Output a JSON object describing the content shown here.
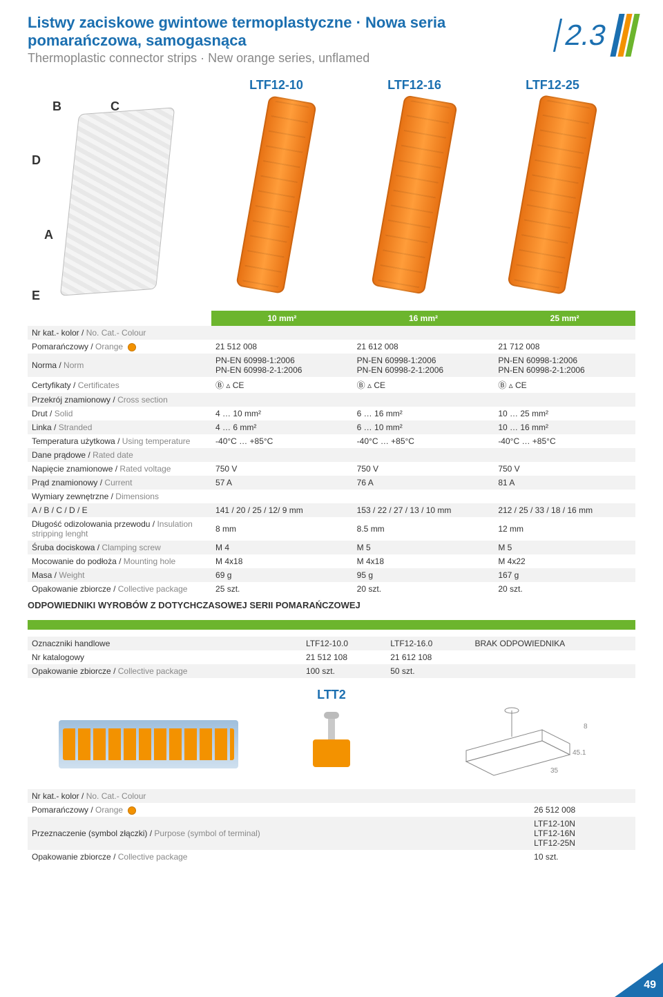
{
  "section_number": "2.3",
  "page_number": "49",
  "colors": {
    "blue": "#1b6fb0",
    "orange": "#f39200",
    "green": "#6cb52d",
    "grey_row": "#f2f2f2",
    "white": "#ffffff"
  },
  "titles": {
    "pl": "Listwy zaciskowe gwintowe termoplastyczne · Nowa seria pomarańczowa, samogasnąca",
    "en": "Thermoplastic connector strips · New orange series, unflamed"
  },
  "products": {
    "model_labels": [
      "LTF12-10",
      "LTF12-16",
      "LTF12-25"
    ],
    "size_headers": [
      "10 mm²",
      "16 mm²",
      "25 mm²"
    ]
  },
  "diagram_labels": {
    "A": "A",
    "B": "B",
    "C": "C",
    "D": "D",
    "E": "E"
  },
  "spec_rows": [
    {
      "label_pl": "Nr kat.- kolor",
      "label_en": "No. Cat.- Colour"
    },
    {
      "sublabel_pl": "Pomarańczowy",
      "sublabel_en": "Orange",
      "swatch": true,
      "v": [
        "21 512 008",
        "21 612 008",
        "21 712 008"
      ]
    },
    {
      "label_pl": "Norma",
      "label_en": "Norm",
      "v": [
        "PN-EN 60998-1:2006\nPN-EN 60998-2-1:2006",
        "PN-EN 60998-1:2006\nPN-EN 60998-2-1:2006",
        "PN-EN 60998-1:2006\nPN-EN 60998-2-1:2006"
      ]
    },
    {
      "label_pl": "Certyfikaty",
      "label_en": "Certificates",
      "v": [
        "Ⓑ ▵ CE",
        "Ⓑ ▵ CE",
        "Ⓑ ▵ CE"
      ]
    },
    {
      "label_pl": "Przekrój znamionowy",
      "label_en": "Cross section"
    },
    {
      "sublabel_pl": "Drut",
      "sublabel_en": "Solid",
      "v": [
        "4 … 10 mm²",
        "6 … 16 mm²",
        "10 … 25 mm²"
      ]
    },
    {
      "sublabel_pl": "Linka",
      "sublabel_en": "Stranded",
      "v": [
        "4 … 6 mm²",
        "6 … 10 mm²",
        "10 … 16 mm²"
      ]
    },
    {
      "label_pl": "Temperatura użytkowa",
      "label_en": "Using temperature",
      "v": [
        "-40°C … +85°C",
        "-40°C … +85°C",
        "-40°C … +85°C"
      ]
    },
    {
      "label_pl": "Dane prądowe",
      "label_en": "Rated date"
    },
    {
      "label_pl": "Napięcie znamionowe",
      "label_en": "Rated voltage",
      "v": [
        "750 V",
        "750 V",
        "750 V"
      ]
    },
    {
      "label_pl": "Prąd znamionowy",
      "label_en": "Current",
      "v": [
        "57 A",
        "76 A",
        "81 A"
      ]
    },
    {
      "label_pl": "Wymiary zewnętrzne",
      "label_en": "Dimensions"
    },
    {
      "sublabel_plain": "A / B / C / D / E",
      "v": [
        "141 / 20 / 25 / 12/ 9 mm",
        "153 / 22 / 27 / 13 / 10 mm",
        "212 / 25 / 33 / 18 / 16 mm"
      ]
    },
    {
      "label_pl": "Długość odizolowania przewodu",
      "label_en": "Insulation stripping lenght",
      "v": [
        "8 mm",
        "8.5 mm",
        "12 mm"
      ]
    },
    {
      "label_pl": "Śruba dociskowa",
      "label_en": "Clamping screw",
      "v": [
        "M 4",
        "M 5",
        "M 5"
      ]
    },
    {
      "label_pl": "Mocowanie do podłoża",
      "label_en": "Mounting hole",
      "v": [
        "M 4x18",
        "M 4x18",
        "M 4x22"
      ]
    },
    {
      "label_pl": "Masa",
      "label_en": "Weight",
      "v": [
        "69 g",
        "95 g",
        "167 g"
      ]
    },
    {
      "label_pl": "Opakowanie zbiorcze",
      "label_en": "Collective package",
      "v": [
        "25 szt.",
        "20 szt.",
        "20 szt."
      ]
    }
  ],
  "footer_note": "ODPOWIEDNIKI WYROBÓW Z DOTYCHCZASOWEJ SERII POMARAŃCZOWEJ",
  "equiv_rows": [
    {
      "label": "Oznaczniki handlowe",
      "v": [
        "LTF12-10.0",
        "LTF12-16.0",
        "BRAK ODPOWIEDNIKA"
      ]
    },
    {
      "label": "Nr katalogowy",
      "v": [
        "21 512 108",
        "21 612 108",
        ""
      ]
    },
    {
      "label_pl": "Opakowanie zbiorcze",
      "label_en": "Collective package",
      "v": [
        "100 szt.",
        "50 szt.",
        ""
      ]
    }
  ],
  "ltt2": {
    "title": "LTT2",
    "dim_labels": {
      "a": "35",
      "b": "45.1",
      "c": "8"
    },
    "rows": [
      {
        "label_pl": "Nr kat.- kolor",
        "label_en": "No. Cat.- Colour"
      },
      {
        "sublabel_pl": "Pomarańczowy",
        "sublabel_en": "Orange",
        "swatch": true,
        "v": [
          "26 512 008"
        ]
      },
      {
        "label_pl": "Przeznaczenie (symbol złączki)",
        "label_en": "Purpose (symbol of terminal)",
        "v": [
          "LTF12-10N\nLTF12-16N\nLTF12-25N"
        ]
      },
      {
        "label_pl": "Opakowanie zbiorcze",
        "label_en": "Collective package",
        "v": [
          "10 szt."
        ]
      }
    ]
  }
}
